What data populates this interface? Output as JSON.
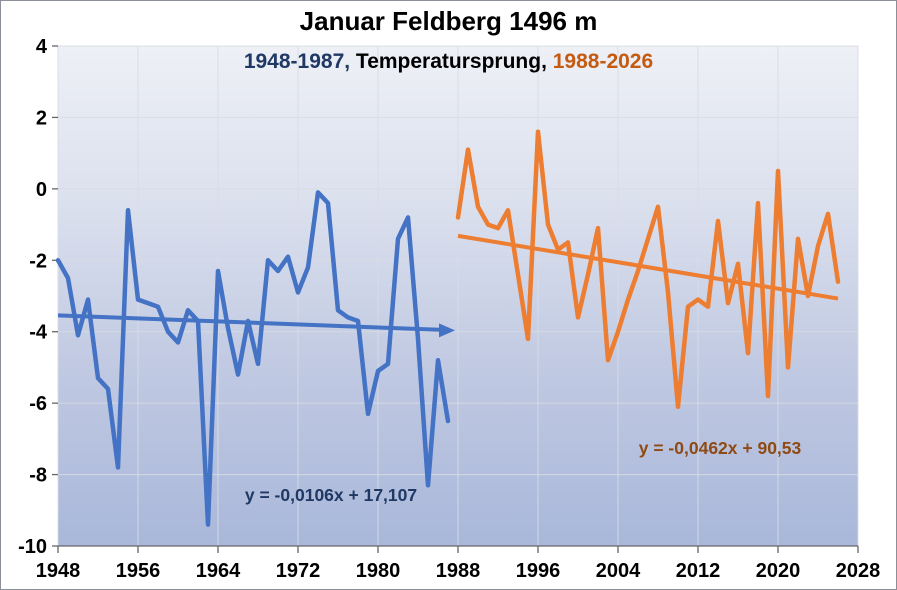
{
  "chart_data": {
    "type": "line",
    "title": "Januar Feldberg 1496 m",
    "subtitle_parts": [
      {
        "text": "1948-1987,",
        "color": "#1F3864"
      },
      {
        "text": " Temperatursprung, ",
        "color": "#000000"
      },
      {
        "text": "1988-2026",
        "color": "#C55A11"
      }
    ],
    "xlabel": "",
    "ylabel": "",
    "xlim": [
      1948,
      2028
    ],
    "ylim": [
      -10,
      4
    ],
    "x_ticks": [
      1948,
      1956,
      1964,
      1972,
      1980,
      1988,
      1996,
      2004,
      2012,
      2020,
      2028
    ],
    "y_ticks": [
      4,
      2,
      0,
      -2,
      -4,
      -6,
      -8,
      -10
    ],
    "grid": true,
    "legend": "none",
    "colors": {
      "series1": "#4472C4",
      "series2": "#ED7D31",
      "equation1_text": "#1F3864",
      "equation2_text": "#8F4A14",
      "axis": "#666666",
      "tick_label": "#000000",
      "gridline": "#D8DCE4",
      "plot_gradient_top": "#EEF0F6",
      "plot_gradient_upper_mid": "#DCE1EE",
      "plot_gradient_lower_mid": "#C0C9E2",
      "plot_gradient_bottom": "#A9B7DA",
      "outer_background": "#FFFFFF"
    },
    "series": [
      {
        "name": "1948-1987",
        "years": [
          1948,
          1949,
          1950,
          1951,
          1952,
          1953,
          1954,
          1955,
          1956,
          1957,
          1958,
          1959,
          1960,
          1961,
          1962,
          1963,
          1964,
          1965,
          1966,
          1967,
          1968,
          1969,
          1970,
          1971,
          1972,
          1973,
          1974,
          1975,
          1976,
          1977,
          1978,
          1979,
          1980,
          1981,
          1982,
          1983,
          1984,
          1985,
          1986,
          1987
        ],
        "values": [
          -2.0,
          -2.5,
          -4.1,
          -3.1,
          -5.3,
          -5.6,
          -7.8,
          -0.6,
          -3.1,
          -3.2,
          -3.3,
          -4.0,
          -4.3,
          -3.4,
          -3.7,
          -9.4,
          -2.3,
          -3.9,
          -5.2,
          -3.7,
          -4.9,
          -2.0,
          -2.3,
          -1.9,
          -2.9,
          -2.2,
          -0.1,
          -0.4,
          -3.4,
          -3.6,
          -3.7,
          -6.3,
          -5.1,
          -4.9,
          -1.4,
          -0.8,
          -4.2,
          -8.3,
          -4.8,
          -6.5
        ]
      },
      {
        "name": "1988-2026",
        "years": [
          1988,
          1989,
          1990,
          1991,
          1992,
          1993,
          1994,
          1995,
          1996,
          1997,
          1998,
          1999,
          2000,
          2001,
          2002,
          2003,
          2004,
          2005,
          2006,
          2007,
          2008,
          2009,
          2010,
          2011,
          2012,
          2013,
          2014,
          2015,
          2016,
          2017,
          2018,
          2019,
          2020,
          2021,
          2022,
          2023,
          2024,
          2025,
          2026
        ],
        "values": [
          -0.8,
          1.1,
          -0.5,
          -1.0,
          -1.1,
          -0.6,
          -2.4,
          -4.2,
          1.6,
          -1.0,
          -1.7,
          -1.5,
          -3.6,
          -2.4,
          -1.1,
          -4.8,
          -4.0,
          -3.1,
          -2.3,
          -1.4,
          -0.5,
          -2.9,
          -6.1,
          -3.3,
          -3.1,
          -3.3,
          -0.9,
          -3.2,
          -2.1,
          -4.6,
          -0.4,
          -5.8,
          0.5,
          -5.0,
          -1.4,
          -3.0,
          -1.6,
          -0.7,
          -2.6
        ]
      }
    ],
    "trendlines": [
      {
        "series": "1948-1987",
        "equation_label": "y = -0,0106x + 17,107",
        "slope": -0.0106,
        "intercept": 17.107,
        "x_start": 1948,
        "x_end": 1988,
        "arrow_end": true
      },
      {
        "series": "1988-2026",
        "equation_label": "y = -0,0462x + 90,53",
        "slope": -0.0462,
        "intercept": 90.53,
        "x_start": 1988,
        "x_end": 2026,
        "arrow_end": false
      }
    ]
  }
}
